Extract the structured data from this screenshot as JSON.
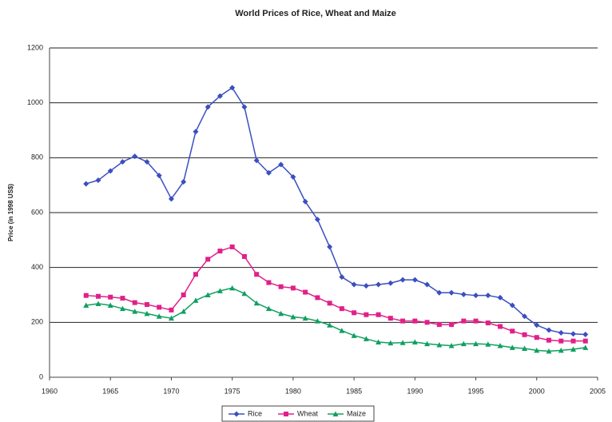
{
  "chart_data": {
    "type": "line",
    "title": "World Prices of Rice, Wheat and Maize",
    "ylabel": "Price (in 1998 US$)",
    "x": [
      1963,
      1964,
      1965,
      1966,
      1967,
      1968,
      1969,
      1970,
      1971,
      1972,
      1973,
      1974,
      1975,
      1976,
      1977,
      1978,
      1979,
      1980,
      1981,
      1982,
      1983,
      1984,
      1985,
      1986,
      1987,
      1988,
      1989,
      1990,
      1991,
      1992,
      1993,
      1994,
      1995,
      1996,
      1997,
      1998,
      1999,
      2000,
      2001,
      2002,
      2003,
      2004
    ],
    "series": [
      {
        "name": "Rice",
        "color": "#3a4fc0",
        "marker": "diamond",
        "values": [
          705,
          718,
          752,
          785,
          805,
          785,
          735,
          650,
          712,
          895,
          985,
          1025,
          1055,
          985,
          790,
          745,
          775,
          730,
          640,
          575,
          475,
          365,
          338,
          333,
          338,
          343,
          355,
          355,
          338,
          308,
          308,
          302,
          298,
          298,
          290,
          262,
          222,
          190,
          172,
          162,
          158,
          156
        ]
      },
      {
        "name": "Wheat",
        "color": "#e0208a",
        "marker": "square",
        "values": [
          298,
          295,
          292,
          288,
          272,
          265,
          255,
          245,
          300,
          375,
          430,
          460,
          475,
          440,
          375,
          345,
          330,
          325,
          310,
          290,
          270,
          250,
          235,
          228,
          228,
          215,
          205,
          205,
          200,
          192,
          192,
          205,
          205,
          198,
          185,
          168,
          155,
          145,
          135,
          132,
          132,
          132
        ]
      },
      {
        "name": "Maize",
        "color": "#10a060",
        "marker": "triangle",
        "values": [
          262,
          268,
          262,
          250,
          240,
          232,
          222,
          215,
          240,
          280,
          300,
          315,
          325,
          305,
          270,
          250,
          232,
          220,
          215,
          205,
          190,
          170,
          152,
          140,
          128,
          125,
          126,
          128,
          122,
          118,
          115,
          122,
          122,
          120,
          115,
          108,
          105,
          98,
          95,
          98,
          102,
          108
        ]
      }
    ],
    "xlim": [
      1960,
      2005
    ],
    "xticks": [
      1960,
      1965,
      1970,
      1975,
      1980,
      1985,
      1990,
      1995,
      2000,
      2005
    ],
    "ylim": [
      0,
      1200
    ],
    "yticks": [
      0,
      200,
      400,
      600,
      800,
      1000,
      1200
    ],
    "grid": true,
    "legend": "bottom"
  }
}
